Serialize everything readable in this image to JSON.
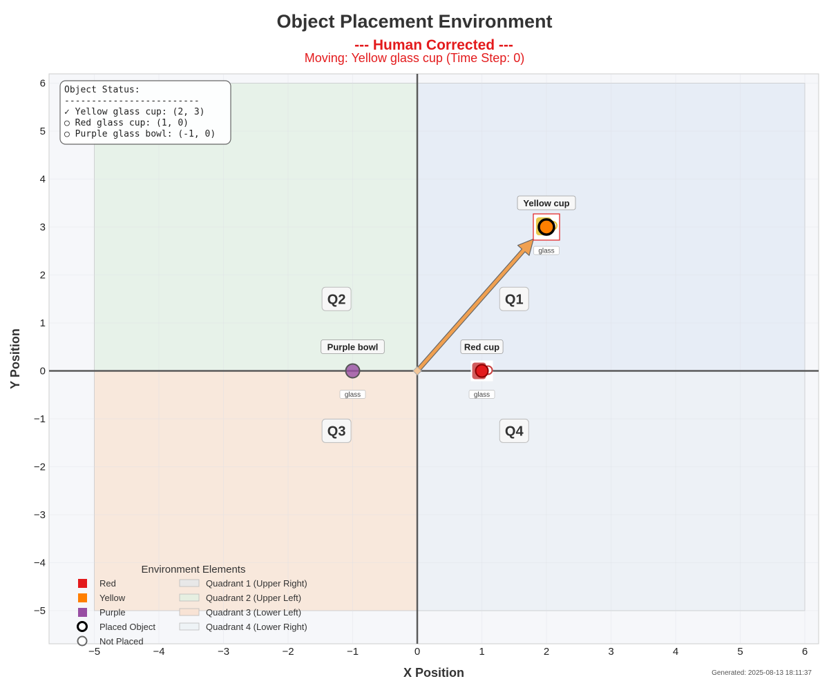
{
  "title": "Object Placement Environment",
  "subtitle_mode": "--- Human Corrected ---",
  "subtitle_moving": "Moving: Yellow glass cup (Time Step: 0)",
  "footer_generated": "Generated: 2025-08-13 18:11:37",
  "colors": {
    "accent_red": "#e31a1c",
    "q1_fill": "#e7edf6",
    "q2_fill": "#e7f2e9",
    "q3_fill": "#f8e8dc",
    "q4_fill": "#edf1f6",
    "plot_bg": "#f6f7fa",
    "red": "#e31a1c",
    "yellow": "#ff7f00",
    "purple": "#984ea3",
    "arrow": "#f0a050"
  },
  "status_box": {
    "lines": [
      "Object Status:",
      "-------------------------",
      "✓ Yellow glass cup: (2, 3)",
      "○ Red glass cup: (1, 0)",
      "○ Purple glass bowl: (-1, 0)"
    ]
  },
  "legend": {
    "title": "Environment Elements",
    "col1": [
      "Red",
      "Yellow",
      "Purple",
      "Placed Object",
      "Not Placed"
    ],
    "col2": [
      "Quadrant 1 (Upper Right)",
      "Quadrant 2 (Upper Left)",
      "Quadrant 3 (Lower Left)",
      "Quadrant 4 (Lower Right)"
    ]
  },
  "chart_data": {
    "type": "scatter",
    "xlabel": "X Position",
    "ylabel": "Y Position",
    "xlim": [
      -5.7,
      6.2
    ],
    "ylim": [
      -5.7,
      6.2
    ],
    "grid": true,
    "xticks": [
      -5,
      -4,
      -3,
      -2,
      -1,
      0,
      1,
      2,
      3,
      4,
      5,
      6
    ],
    "yticks": [
      -5,
      -4,
      -3,
      -2,
      -1,
      0,
      1,
      2,
      3,
      4,
      5,
      6
    ],
    "tick_labels_x": [
      "−5",
      "−4",
      "−3",
      "−2",
      "−1",
      "0",
      "1",
      "2",
      "3",
      "4",
      "5",
      "6"
    ],
    "tick_labels_y": [
      "−5",
      "−4",
      "−3",
      "−2",
      "−1",
      "0",
      "1",
      "2",
      "3",
      "4",
      "5",
      "6"
    ],
    "quadrants": [
      {
        "label": "Q1",
        "x": [
          0,
          6
        ],
        "y": [
          0,
          6
        ],
        "label_at": [
          1.5,
          1.5
        ]
      },
      {
        "label": "Q2",
        "x": [
          -5,
          0
        ],
        "y": [
          0,
          6
        ],
        "label_at": [
          -1.25,
          1.5
        ]
      },
      {
        "label": "Q3",
        "x": [
          -5,
          0
        ],
        "y": [
          -5,
          0
        ],
        "label_at": [
          -1.25,
          -1.25
        ]
      },
      {
        "label": "Q4",
        "x": [
          0,
          6
        ],
        "y": [
          -5,
          0
        ],
        "label_at": [
          1.5,
          -1.25
        ]
      }
    ],
    "objects": [
      {
        "name": "Yellow cup",
        "material": "glass",
        "color": "yellow",
        "x": 2,
        "y": 3,
        "placed": true
      },
      {
        "name": "Red cup",
        "material": "glass",
        "color": "red",
        "x": 1,
        "y": 0,
        "placed": false
      },
      {
        "name": "Purple bowl",
        "material": "glass",
        "color": "purple",
        "x": -1,
        "y": 0,
        "placed": false
      }
    ],
    "arrow": {
      "from": [
        0,
        0
      ],
      "to": [
        1.8,
        2.75
      ]
    },
    "legend_position": "lower-left",
    "status_position": "upper-left"
  }
}
